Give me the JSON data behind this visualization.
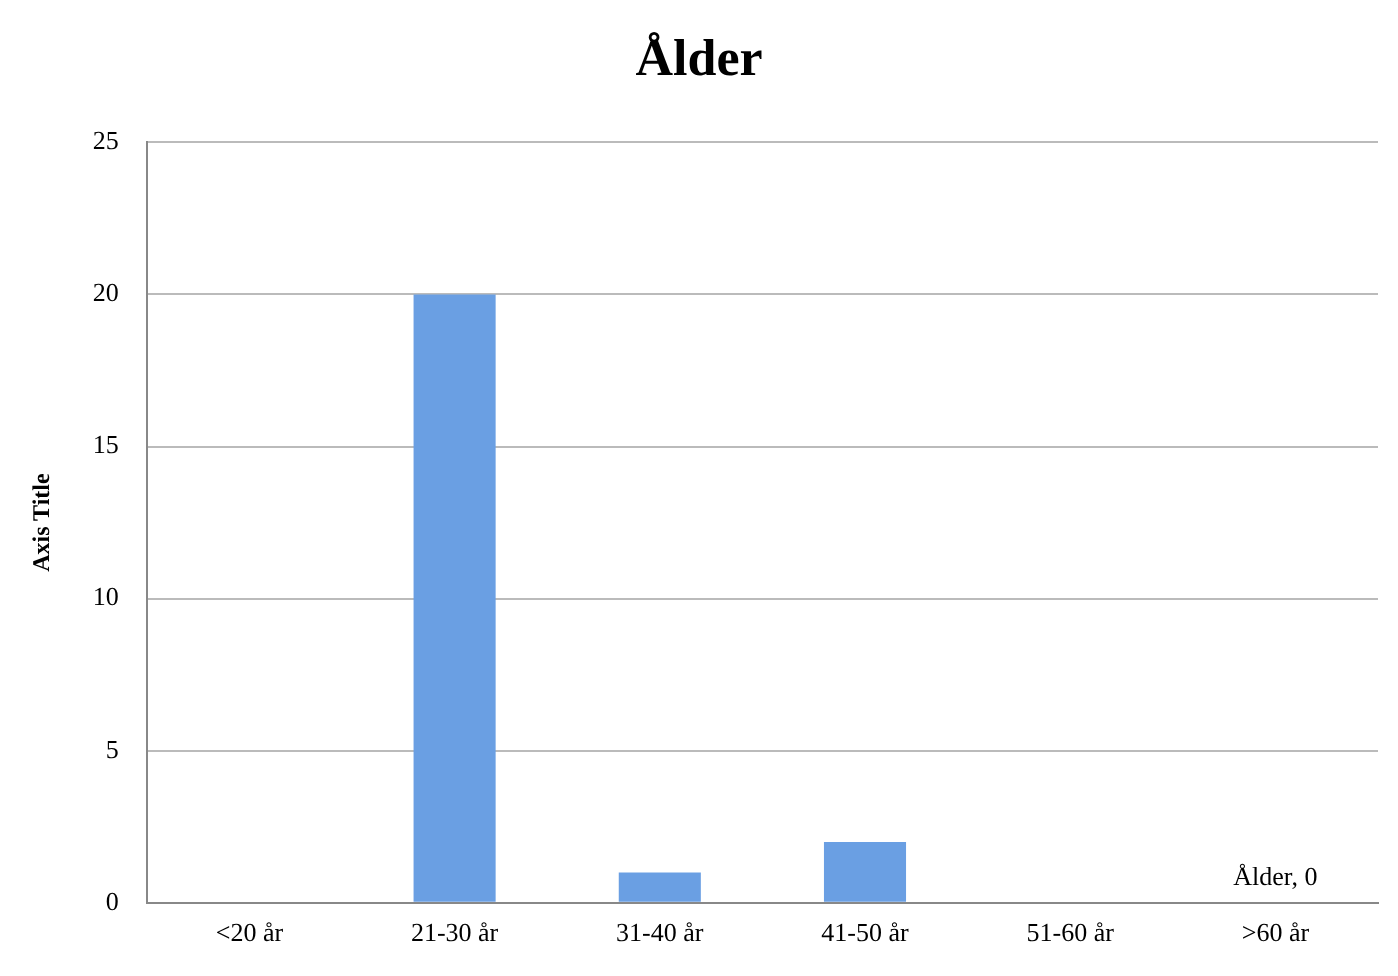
{
  "chart_data": {
    "type": "bar",
    "title": "Ålder",
    "ylabel": "Axis Title",
    "categories": [
      "<20 år",
      "21-30 år",
      "31-40 år",
      "41-50 år",
      "51-60 år",
      ">60 år"
    ],
    "values": [
      0,
      20,
      1,
      2,
      0,
      0
    ],
    "color": "#6a9fe3",
    "ylim": [
      0,
      25
    ],
    "yticks": [
      0,
      5,
      10,
      15,
      20,
      25
    ],
    "grid": "y",
    "legend": false,
    "annotations": [
      {
        "text": "Ålder, 0",
        "x": ">60 år",
        "y": 0
      }
    ]
  }
}
